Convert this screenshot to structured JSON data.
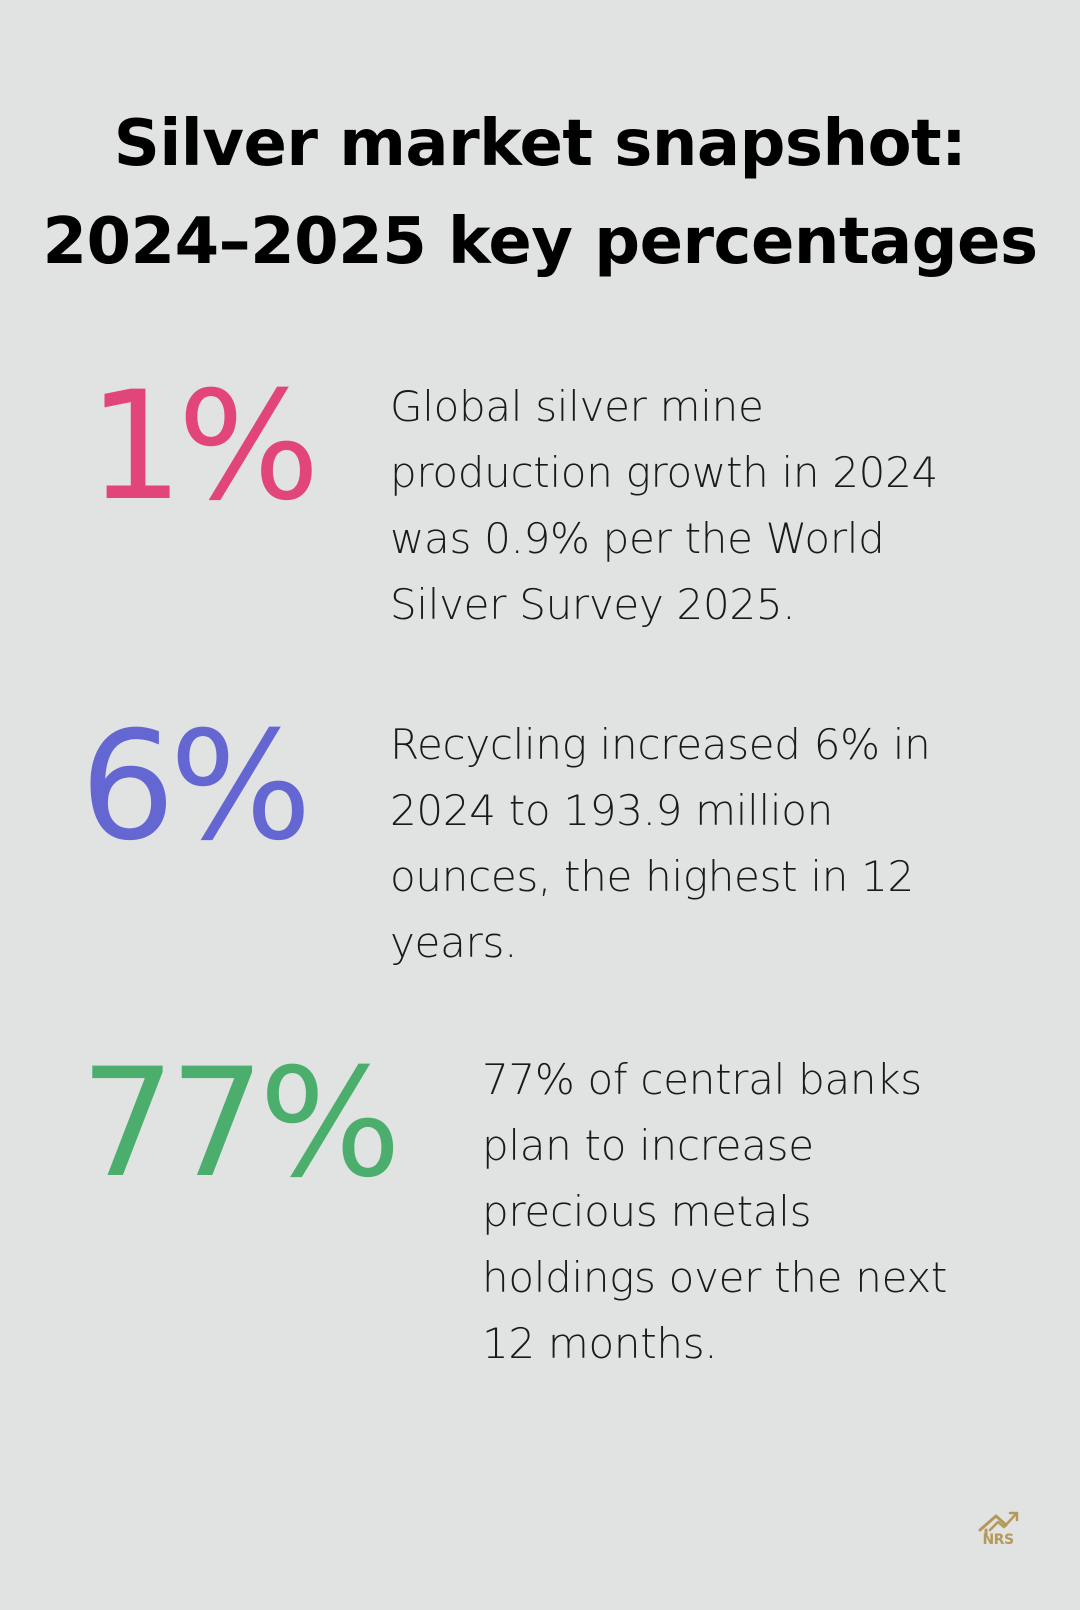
{
  "title": {
    "line1": "Silver market snapshot:",
    "line2": "2024–2025 key percentages"
  },
  "stats": [
    {
      "value": "1%",
      "color": "#e2457a",
      "description": "Global silver mine production growth in 2024 was 0.9% per the World Silver Survey 2025."
    },
    {
      "value": "6%",
      "color": "#6467d1",
      "description": "Recycling increased 6% in 2024 to 193.9 million ounces, the highest in 12 years."
    },
    {
      "value": "77%",
      "color": "#4cae6d",
      "description": "77% of central banks plan to increase precious metals holdings over the next 12 months."
    }
  ],
  "logo": {
    "text": "NRS",
    "color": "#b49a5a",
    "icon": "house-chart-icon"
  }
}
